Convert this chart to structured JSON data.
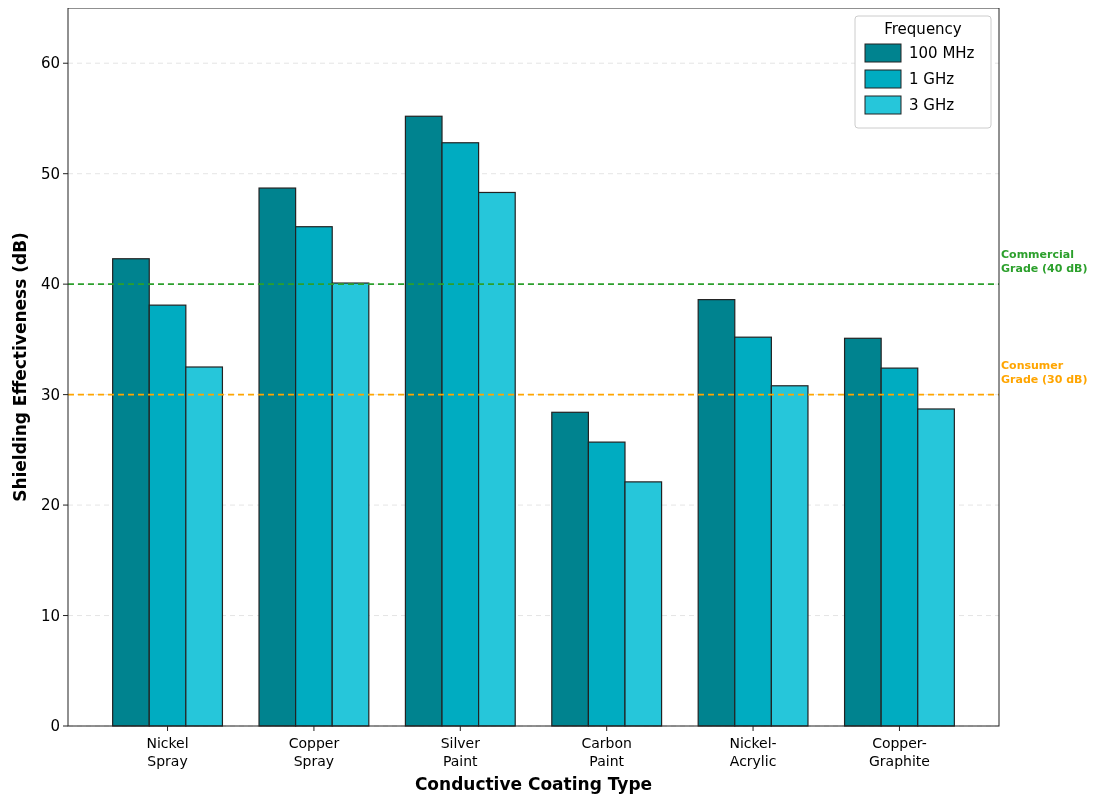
{
  "chart_data": {
    "type": "bar",
    "xlabel": "Conductive Coating Type",
    "ylabel": "Shielding Effectiveness (dB)",
    "legend_title": "Frequency",
    "legend": "top right",
    "grid": "y",
    "categories": [
      "Nickel\nSpray",
      "Copper\nSpray",
      "Silver\nPaint",
      "Carbon\nPaint",
      "Nickel-\nAcrylic",
      "Copper-\nGraphite"
    ],
    "series": [
      {
        "name": "100 MHz",
        "color": "#00838f",
        "values": [
          42.3,
          48.7,
          55.2,
          28.4,
          38.6,
          35.1
        ]
      },
      {
        "name": "1 GHz",
        "color": "#00acc1",
        "values": [
          38.1,
          45.2,
          52.8,
          25.7,
          35.2,
          32.4
        ]
      },
      {
        "name": "3 GHz",
        "color": "#26c6da",
        "values": [
          32.5,
          40.1,
          48.3,
          22.1,
          30.8,
          28.7
        ]
      }
    ],
    "ylim": [
      0,
      65
    ],
    "yticks": [
      0,
      10,
      20,
      30,
      40,
      50,
      60
    ],
    "ref_lines": [
      {
        "axis": "y",
        "value": 40,
        "label": "Commercial\nGrade (40 dB)",
        "color": "#2ca02c",
        "line_style": "dashed"
      },
      {
        "axis": "y",
        "value": 30,
        "label": "Consumer\nGrade (30 dB)",
        "color": "#ffa500",
        "line_style": "dashed"
      }
    ]
  }
}
